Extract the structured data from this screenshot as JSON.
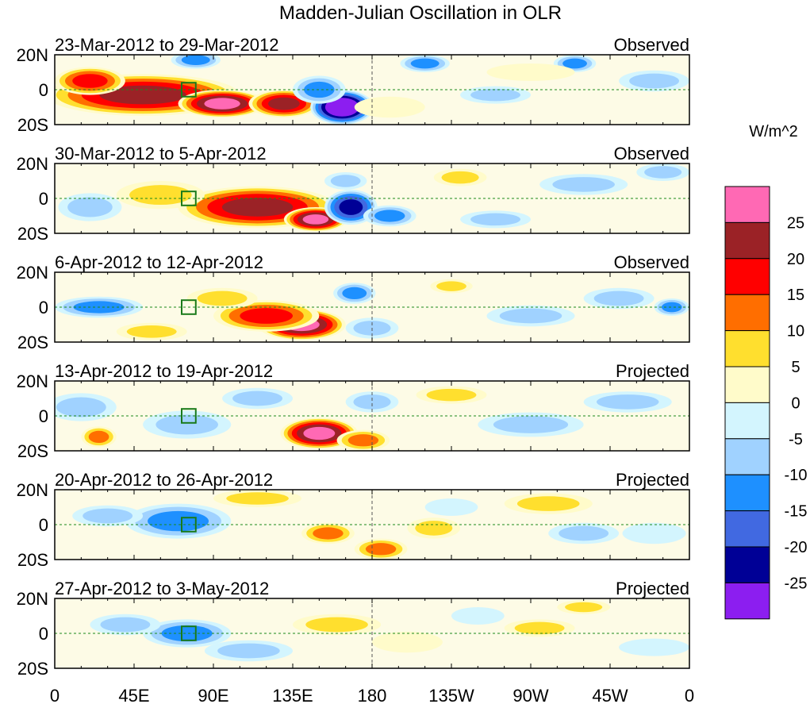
{
  "chart_data": {
    "type": "heatmap",
    "title": "Madden-Julian Oscillation in OLR",
    "units_label": "W/m^2",
    "xticks": [
      "0",
      "45E",
      "90E",
      "135E",
      "180",
      "135W",
      "90W",
      "45W",
      "0"
    ],
    "xtick_lons": [
      0,
      45,
      90,
      135,
      180,
      225,
      270,
      315,
      360
    ],
    "yticks": [
      "20N",
      "0",
      "20S"
    ],
    "ytick_lats": [
      20,
      0,
      -20
    ],
    "lon_range": [
      0,
      360
    ],
    "lat_range": [
      -20,
      20
    ],
    "colorbar": {
      "labels": [
        "25",
        "20",
        "15",
        "10",
        "5",
        "0",
        "-5",
        "-10",
        "-15",
        "-20",
        "-25"
      ],
      "levels": [
        25,
        20,
        15,
        10,
        5,
        0,
        -5,
        -10,
        -15,
        -20,
        -25
      ],
      "colors_high_to_low": [
        "#ff69b4",
        "#9b2226",
        "#ff0000",
        "#ff6e00",
        "#ffdf2e",
        "#fffbca",
        "#d3f5fe",
        "#a0d2ff",
        "#1e90ff",
        "#4169e1",
        "#000096",
        "#8c1ef0"
      ]
    },
    "index_box": {
      "lon": [
        72,
        80
      ],
      "lat": [
        -4,
        4
      ]
    },
    "panels": [
      {
        "period": "23-Mar-2012 to 29-Mar-2012",
        "status": "Observed",
        "anomalies": [
          [
            50,
            -3,
            22,
            55,
            12
          ],
          [
            95,
            -8,
            28,
            25,
            8
          ],
          [
            130,
            -8,
            22,
            20,
            8
          ],
          [
            20,
            5,
            16,
            20,
            8
          ],
          [
            163,
            -10,
            -32,
            18,
            10
          ],
          [
            150,
            0,
            -12,
            15,
            8
          ],
          [
            80,
            17,
            -12,
            14,
            5
          ],
          [
            210,
            15,
            -11,
            14,
            5
          ],
          [
            250,
            -3,
            -8,
            20,
            5
          ],
          [
            295,
            15,
            -11,
            12,
            5
          ],
          [
            340,
            5,
            -6,
            20,
            6
          ],
          [
            190,
            -10,
            4,
            20,
            6
          ],
          [
            270,
            10,
            4,
            25,
            5
          ]
        ]
      },
      {
        "period": "30-Mar-2012 to 5-Apr-2012",
        "status": "Observed",
        "anomalies": [
          [
            115,
            -5,
            22,
            45,
            12
          ],
          [
            148,
            -12,
            28,
            18,
            7
          ],
          [
            60,
            2,
            8,
            25,
            8
          ],
          [
            168,
            -5,
            -24,
            15,
            10
          ],
          [
            165,
            10,
            -8,
            12,
            5
          ],
          [
            190,
            -10,
            -12,
            15,
            6
          ],
          [
            230,
            12,
            7,
            15,
            5
          ],
          [
            20,
            -5,
            -7,
            18,
            8
          ],
          [
            300,
            8,
            -8,
            25,
            6
          ],
          [
            345,
            15,
            -6,
            15,
            5
          ],
          [
            250,
            -12,
            -6,
            20,
            5
          ]
        ]
      },
      {
        "period": "6-Apr-2012 to 12-Apr-2012",
        "status": "Observed",
        "anomalies": [
          [
            140,
            -10,
            28,
            25,
            9
          ],
          [
            120,
            -5,
            16,
            30,
            9
          ],
          [
            95,
            5,
            8,
            20,
            6
          ],
          [
            25,
            0,
            -12,
            25,
            6
          ],
          [
            170,
            8,
            -12,
            12,
            6
          ],
          [
            180,
            -12,
            -8,
            15,
            6
          ],
          [
            225,
            12,
            7,
            12,
            4
          ],
          [
            270,
            -5,
            -6,
            25,
            6
          ],
          [
            320,
            5,
            -6,
            20,
            6
          ],
          [
            350,
            0,
            -12,
            10,
            5
          ],
          [
            55,
            -14,
            6,
            20,
            5
          ]
        ]
      },
      {
        "period": "13-Apr-2012 to 19-Apr-2012",
        "status": "Projected",
        "anomalies": [
          [
            150,
            -10,
            27,
            22,
            9
          ],
          [
            175,
            -14,
            12,
            15,
            6
          ],
          [
            25,
            -12,
            14,
            10,
            6
          ],
          [
            15,
            5,
            -10,
            20,
            8
          ],
          [
            75,
            -5,
            -9,
            25,
            8
          ],
          [
            115,
            10,
            -7,
            20,
            6
          ],
          [
            180,
            8,
            -7,
            15,
            6
          ],
          [
            225,
            12,
            7,
            20,
            5
          ],
          [
            270,
            -5,
            -7,
            30,
            7
          ],
          [
            325,
            8,
            -6,
            25,
            6
          ]
        ]
      },
      {
        "period": "20-Apr-2012 to 26-Apr-2012",
        "status": "Projected",
        "anomalies": [
          [
            70,
            2,
            -14,
            30,
            10
          ],
          [
            30,
            5,
            -6,
            20,
            6
          ],
          [
            155,
            -5,
            12,
            15,
            6
          ],
          [
            185,
            -14,
            11,
            15,
            6
          ],
          [
            115,
            15,
            6,
            25,
            5
          ],
          [
            215,
            -2,
            6,
            15,
            6
          ],
          [
            280,
            12,
            7,
            25,
            6
          ],
          [
            300,
            -5,
            -6,
            20,
            6
          ],
          [
            225,
            10,
            -5,
            15,
            5
          ],
          [
            340,
            -5,
            -5,
            18,
            6
          ]
        ]
      },
      {
        "period": "27-Apr-2012 to 3-May-2012",
        "status": "Projected",
        "anomalies": [
          [
            75,
            0,
            -12,
            25,
            8
          ],
          [
            40,
            5,
            -6,
            20,
            6
          ],
          [
            110,
            -10,
            -6,
            25,
            6
          ],
          [
            160,
            5,
            6,
            25,
            6
          ],
          [
            200,
            -5,
            5,
            20,
            6
          ],
          [
            275,
            3,
            8,
            20,
            5
          ],
          [
            300,
            15,
            6,
            15,
            4
          ],
          [
            240,
            10,
            -5,
            15,
            5
          ],
          [
            340,
            -8,
            -5,
            20,
            5
          ]
        ]
      }
    ]
  }
}
